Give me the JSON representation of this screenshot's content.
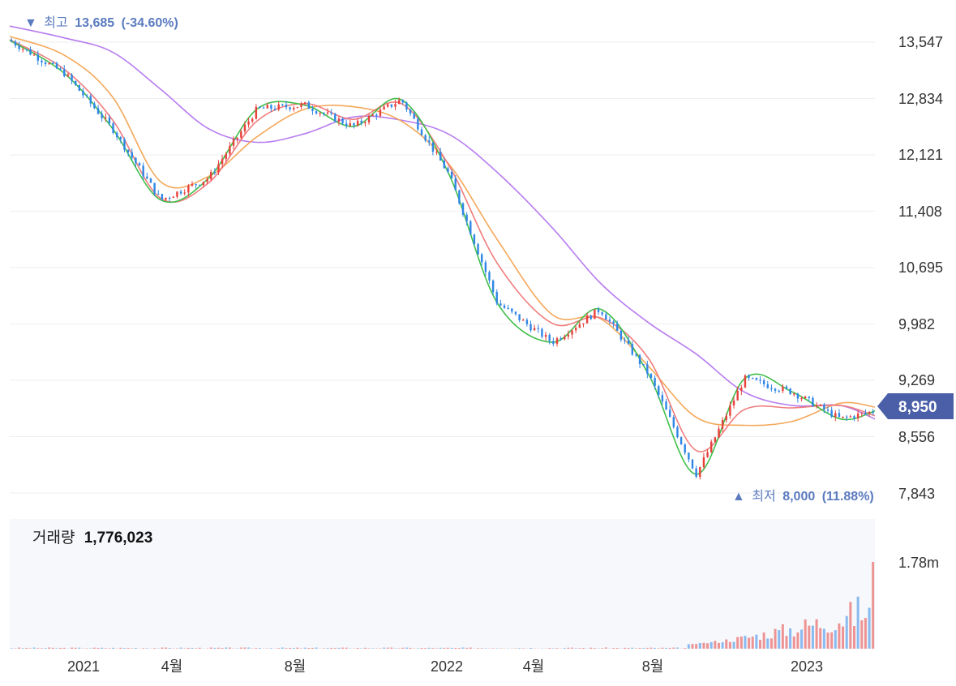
{
  "colors": {
    "up": "#e8403c",
    "down": "#2f86e6",
    "ma_green": "#3fbf4a",
    "ma_red": "#f07d7d",
    "ma_orange": "#f4a85a",
    "ma_purple": "#b77cf0",
    "grid": "#eeeeee",
    "axis_text": "#333333",
    "marker_text": "#5b7bbf",
    "current_badge": "#4a5fa8",
    "volume_panel_bg": "#f6f8fc"
  },
  "chart_data": [
    {
      "type": "line",
      "title": "",
      "y_ticks": [
        "13,547",
        "12,834",
        "12,121",
        "11,408",
        "10,695",
        "9,982",
        "9,269",
        "8,556",
        "7,843"
      ],
      "ylim": [
        7843,
        13547
      ],
      "x_ticks": [
        "2021",
        "4월",
        "8월",
        "2022",
        "4월",
        "8월",
        "2023"
      ],
      "high_marker": {
        "arrow": "▼",
        "label": "최고",
        "value": "13,685",
        "pct": "(-34.60%)"
      },
      "low_marker": {
        "arrow": "▲",
        "label": "최저",
        "value": "8,000",
        "pct": "(11.88%)"
      },
      "current_price": "8,950",
      "series": [
        {
          "name": "",
          "color_key": "ma_purple",
          "points": [
            [
              0,
              13750
            ],
            [
              8,
              13600
            ],
            [
              15,
              13420
            ],
            [
              22,
              12950
            ],
            [
              29,
              12450
            ],
            [
              36,
              12280
            ],
            [
              43,
              12390
            ],
            [
              50,
              12600
            ],
            [
              57,
              12560
            ],
            [
              64,
              12380
            ],
            [
              71,
              11900
            ],
            [
              79,
              11200
            ],
            [
              86,
              10500
            ],
            [
              93,
              10000
            ],
            [
              100,
              9600
            ],
            [
              107,
              9120
            ],
            [
              114,
              8950
            ],
            [
              121,
              8950
            ],
            [
              126,
              8780
            ]
          ]
        },
        {
          "name": "",
          "color_key": "ma_orange",
          "points": [
            [
              0,
              13620
            ],
            [
              8,
              13380
            ],
            [
              15,
              12850
            ],
            [
              22,
              11780
            ],
            [
              29,
              11850
            ],
            [
              36,
              12350
            ],
            [
              43,
              12700
            ],
            [
              50,
              12730
            ],
            [
              57,
              12550
            ],
            [
              64,
              12000
            ],
            [
              71,
              11050
            ],
            [
              79,
              10100
            ],
            [
              86,
              10050
            ],
            [
              93,
              9450
            ],
            [
              100,
              8800
            ],
            [
              107,
              8700
            ],
            [
              114,
              8750
            ],
            [
              121,
              8980
            ],
            [
              126,
              8930
            ]
          ]
        },
        {
          "name": "",
          "color_key": "ma_red",
          "points": [
            [
              0,
              13580
            ],
            [
              8,
              13200
            ],
            [
              15,
              12560
            ],
            [
              22,
              11570
            ],
            [
              29,
              11770
            ],
            [
              36,
              12550
            ],
            [
              43,
              12770
            ],
            [
              50,
              12570
            ],
            [
              57,
              12770
            ],
            [
              64,
              11980
            ],
            [
              71,
              10750
            ],
            [
              79,
              9990
            ],
            [
              86,
              10060
            ],
            [
              93,
              9550
            ],
            [
              100,
              8380
            ],
            [
              107,
              8900
            ],
            [
              114,
              8920
            ],
            [
              121,
              8950
            ],
            [
              126,
              8820
            ]
          ]
        },
        {
          "name": "",
          "color_key": "ma_green",
          "points": [
            [
              0,
              13570
            ],
            [
              8,
              13150
            ],
            [
              15,
              12450
            ],
            [
              22,
              11550
            ],
            [
              29,
              11830
            ],
            [
              36,
              12700
            ],
            [
              43,
              12750
            ],
            [
              50,
              12480
            ],
            [
              57,
              12820
            ],
            [
              64,
              11870
            ],
            [
              71,
              10250
            ],
            [
              79,
              9750
            ],
            [
              86,
              10170
            ],
            [
              93,
              9350
            ],
            [
              100,
              8080
            ],
            [
              107,
              9290
            ],
            [
              114,
              9120
            ],
            [
              121,
              8780
            ],
            [
              126,
              8880
            ]
          ]
        }
      ]
    },
    {
      "type": "bar",
      "title": "거래량",
      "value_label": "1,776,023",
      "y_ticks": [
        "1.78m"
      ],
      "ylim": [
        0,
        1776023
      ]
    }
  ]
}
